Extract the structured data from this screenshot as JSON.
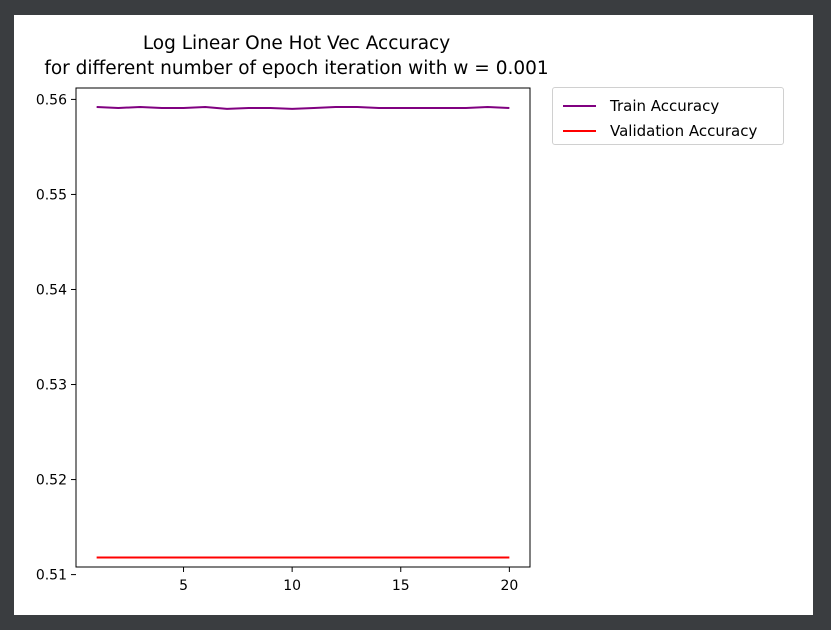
{
  "chart_data": {
    "type": "line",
    "title": [
      "Log Linear One Hot Vec Accuracy",
      "for different number of epoch iteration with w = 0.001"
    ],
    "xlabel": "",
    "ylabel": "",
    "xlim": [
      0.05,
      20.95
    ],
    "ylim": [
      0.5108,
      0.5612
    ],
    "xticks": [
      5,
      10,
      15,
      20
    ],
    "yticks": [
      0.51,
      0.52,
      0.53,
      0.54,
      0.55,
      0.56
    ],
    "grid": false,
    "legend_position": "outside-top-right",
    "x": [
      1,
      2,
      3,
      4,
      5,
      6,
      7,
      8,
      9,
      10,
      11,
      12,
      13,
      14,
      15,
      16,
      17,
      18,
      19,
      20
    ],
    "series": [
      {
        "name": "Train Accuracy",
        "color": "#800080",
        "values": [
          0.5592,
          0.5591,
          0.5592,
          0.5591,
          0.5591,
          0.5592,
          0.559,
          0.5591,
          0.5591,
          0.559,
          0.5591,
          0.5592,
          0.5592,
          0.5591,
          0.5591,
          0.5591,
          0.5591,
          0.5591,
          0.5592,
          0.5591
        ]
      },
      {
        "name": "Validation Accuracy",
        "color": "#ff0000",
        "values": [
          0.5118,
          0.5118,
          0.5118,
          0.5118,
          0.5118,
          0.5118,
          0.5118,
          0.5118,
          0.5118,
          0.5118,
          0.5118,
          0.5118,
          0.5118,
          0.5118,
          0.5118,
          0.5118,
          0.5118,
          0.5118,
          0.5118,
          0.5118
        ]
      }
    ]
  }
}
